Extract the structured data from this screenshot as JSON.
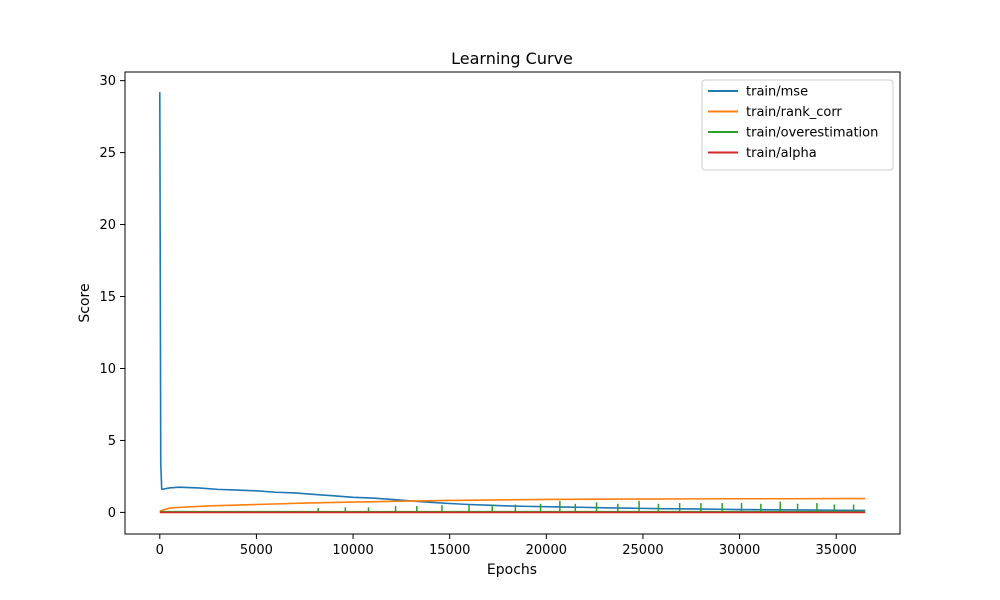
{
  "chart_data": {
    "type": "line",
    "title": "Learning Curve",
    "xlabel": "Epochs",
    "ylabel": "Score",
    "xlim": [
      -1800,
      38300
    ],
    "ylim": [
      -1.5,
      30.6
    ],
    "xticks": [
      0,
      5000,
      10000,
      15000,
      20000,
      25000,
      30000,
      35000
    ],
    "yticks": [
      0,
      5,
      10,
      15,
      20,
      25,
      30
    ],
    "grid": false,
    "legend_position": "top-right",
    "series": [
      {
        "name": "train/mse",
        "color": "#1f77b4",
        "x": [
          0,
          50,
          100,
          500,
          1000,
          2000,
          3000,
          4000,
          5000,
          6000,
          7000,
          8000,
          9000,
          10000,
          11000,
          12000,
          13000,
          14000,
          15000,
          16000,
          17000,
          18000,
          19000,
          20000,
          21000,
          22000,
          23000,
          24000,
          25000,
          26000,
          27000,
          28000,
          29000,
          30000,
          31000,
          32000,
          33000,
          34000,
          35000,
          36500
        ],
        "values": [
          29.2,
          3.4,
          1.6,
          1.7,
          1.75,
          1.7,
          1.6,
          1.55,
          1.5,
          1.4,
          1.35,
          1.25,
          1.15,
          1.05,
          1.0,
          0.9,
          0.8,
          0.7,
          0.62,
          0.55,
          0.5,
          0.45,
          0.42,
          0.4,
          0.37,
          0.35,
          0.32,
          0.3,
          0.28,
          0.26,
          0.25,
          0.23,
          0.22,
          0.2,
          0.19,
          0.18,
          0.17,
          0.16,
          0.15,
          0.14
        ]
      },
      {
        "name": "train/rank_corr",
        "color": "#ff7f0e",
        "x": [
          0,
          500,
          1000,
          2500,
          5000,
          7500,
          10000,
          12500,
          15000,
          17500,
          20000,
          22500,
          25000,
          27500,
          30000,
          32500,
          35000,
          36500
        ],
        "values": [
          0.1,
          0.3,
          0.35,
          0.45,
          0.55,
          0.65,
          0.72,
          0.78,
          0.83,
          0.87,
          0.9,
          0.92,
          0.93,
          0.94,
          0.95,
          0.95,
          0.96,
          0.96
        ]
      },
      {
        "name": "train/overestimation",
        "color": "#2ca02c",
        "x": [
          0,
          5000,
          10000,
          15000,
          20000,
          25000,
          30000,
          35000,
          36500
        ],
        "values": [
          0.05,
          0.05,
          0.05,
          0.05,
          0.05,
          0.05,
          0.05,
          0.05,
          0.05
        ],
        "spikes_x": [
          8200,
          9600,
          10800,
          12200,
          13300,
          14600,
          16000,
          17200,
          18400,
          19700,
          20700,
          21500,
          22600,
          23700,
          24800,
          25800,
          26900,
          28000,
          29100,
          30100,
          31100,
          32100,
          33000,
          34000,
          34900,
          35900
        ],
        "spikes_values": [
          0.3,
          0.35,
          0.35,
          0.45,
          0.45,
          0.5,
          0.5,
          0.55,
          0.55,
          0.6,
          0.8,
          0.6,
          0.7,
          0.6,
          0.8,
          0.6,
          0.65,
          0.65,
          0.65,
          0.65,
          0.6,
          0.75,
          0.6,
          0.65,
          0.55,
          0.55
        ]
      },
      {
        "name": "train/alpha",
        "color": "#d62728",
        "x": [
          0,
          36500
        ],
        "values": [
          0.0,
          0.0
        ]
      }
    ]
  }
}
